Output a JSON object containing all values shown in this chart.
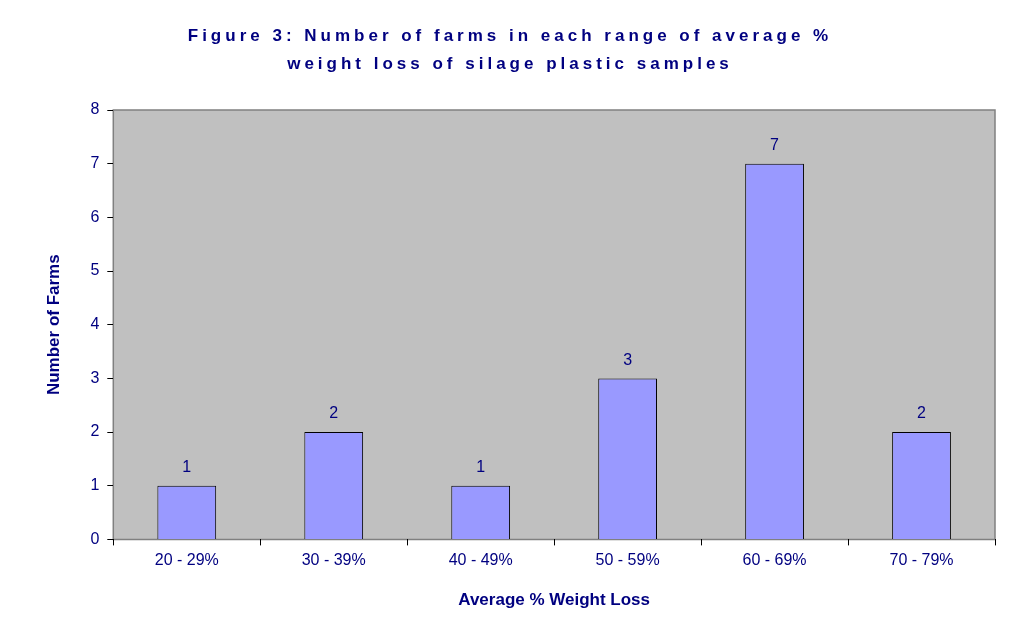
{
  "chart_data": {
    "type": "bar",
    "title": "Figure 3: Number of farms in each range of average % weight loss of silage plastic samples",
    "xlabel": "Average % Weight Loss",
    "ylabel": "Number of Farms",
    "categories": [
      "20 - 29%",
      "30 - 39%",
      "40 - 49%",
      "50 - 59%",
      "60 - 69%",
      "70 - 79%"
    ],
    "values": [
      1,
      2,
      1,
      3,
      7,
      2
    ],
    "color": "#9999ff",
    "ylim": [
      0,
      8
    ],
    "yticks": [
      0,
      1,
      2,
      3,
      4,
      5,
      6,
      7,
      8
    ],
    "data_labels": true
  }
}
